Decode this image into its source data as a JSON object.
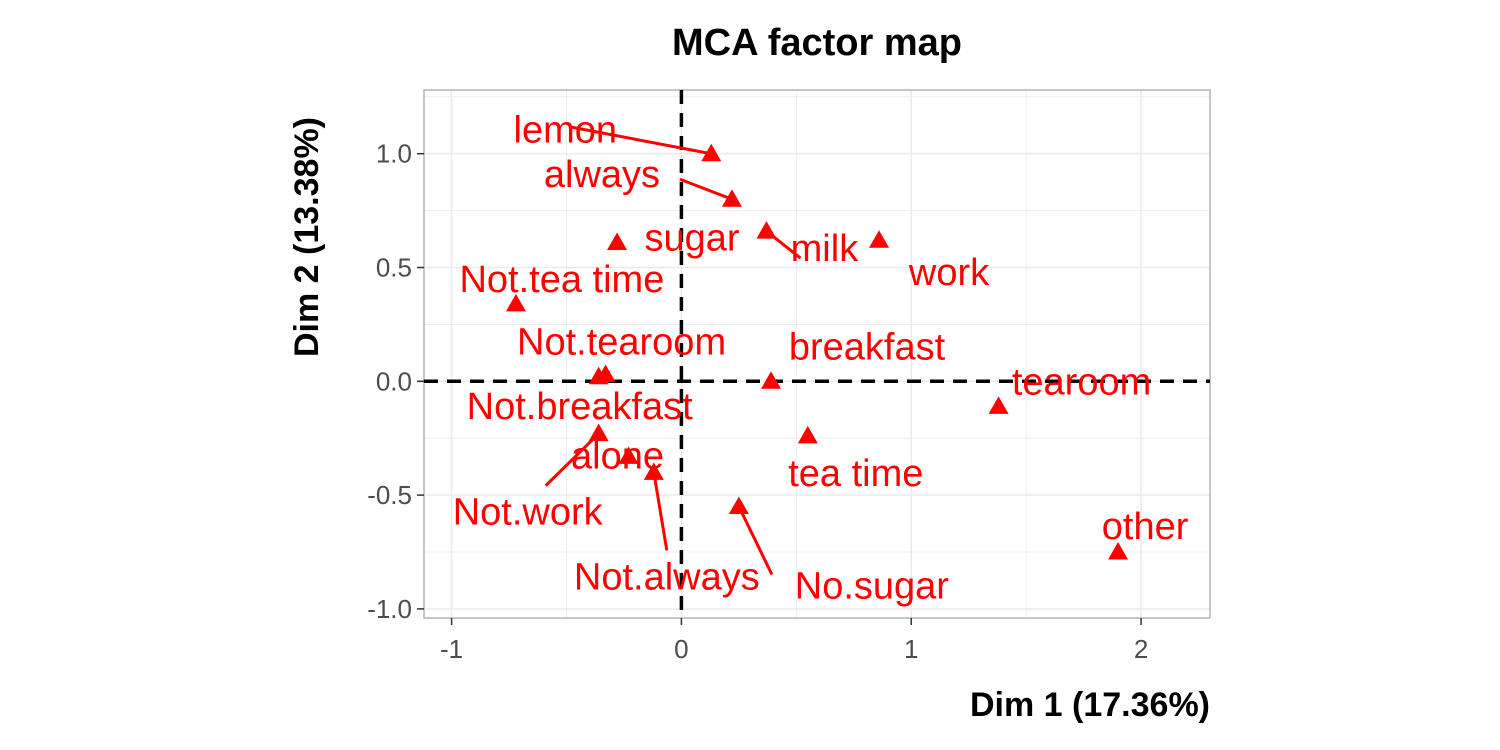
{
  "chart_data": {
    "type": "scatter",
    "title": "MCA factor map",
    "xlabel": "Dim 1 (17.36%)",
    "ylabel": "Dim 2 (13.38%)",
    "xlim": [
      -1.12,
      2.3
    ],
    "ylim": [
      -1.04,
      1.28
    ],
    "xticks": [
      -1,
      0,
      1,
      2
    ],
    "xtick_labels": [
      "-1",
      "0",
      "1",
      "2"
    ],
    "yticks": [
      -1.0,
      -0.5,
      0.0,
      0.5,
      1.0
    ],
    "ytick_labels": [
      "-1.0",
      "-0.5",
      "0.0",
      "0.5",
      "1.0"
    ],
    "grid": true,
    "reference_lines": {
      "x": 0,
      "y": 0,
      "style": "dashed"
    },
    "marker": "triangle",
    "color": "#ff0000",
    "points": [
      {
        "label": "lemon",
        "x": 0.13,
        "y": 1.0
      },
      {
        "label": "always",
        "x": 0.22,
        "y": 0.8
      },
      {
        "label": "milk",
        "x": 0.37,
        "y": 0.66
      },
      {
        "label": "sugar",
        "x": -0.28,
        "y": 0.61
      },
      {
        "label": "work",
        "x": 0.86,
        "y": 0.62
      },
      {
        "label": "Not.tea time",
        "x": -0.72,
        "y": 0.34
      },
      {
        "label": "breakfast",
        "x": 0.39,
        "y": 0.0
      },
      {
        "label": "Not.tearoom",
        "x": -0.33,
        "y": 0.03
      },
      {
        "label": "Not.breakfast",
        "x": -0.36,
        "y": 0.02
      },
      {
        "label": "tearoom",
        "x": 1.38,
        "y": -0.11
      },
      {
        "label": "tea time",
        "x": 0.55,
        "y": -0.24
      },
      {
        "label": "Not.work",
        "x": -0.36,
        "y": -0.23
      },
      {
        "label": "alone",
        "x": -0.23,
        "y": -0.33
      },
      {
        "label": "Not.always",
        "x": -0.12,
        "y": -0.4
      },
      {
        "label": "No.sugar",
        "x": 0.25,
        "y": -0.55
      },
      {
        "label": "other",
        "x": 1.9,
        "y": -0.75
      }
    ]
  }
}
